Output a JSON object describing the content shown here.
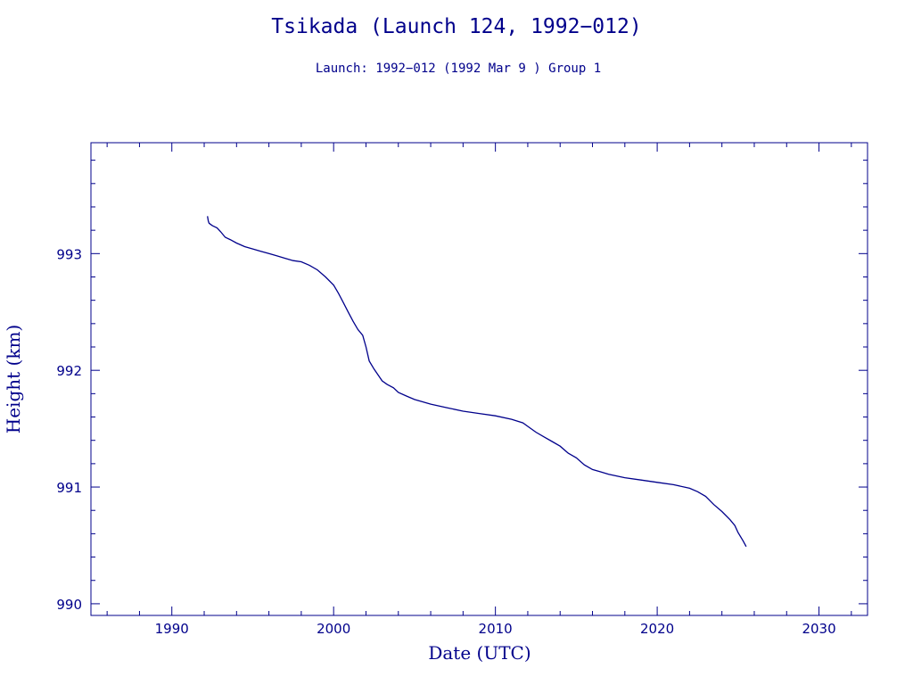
{
  "chart_data": {
    "type": "line",
    "title": "Tsikada (Launch 124, 1992−012)",
    "subtitle": "Launch: 1992−012  (1992 Mar  9 )  Group 1",
    "xlabel": "Date (UTC)",
    "ylabel": "Height (km)",
    "xlim": [
      1985,
      2033
    ],
    "ylim": [
      989.9,
      993.95
    ],
    "x_ticks": [
      1990,
      2000,
      2010,
      2020,
      2030
    ],
    "y_ticks": [
      990,
      991,
      992,
      993
    ],
    "grid": false,
    "line_color": "#00008b",
    "series": [
      {
        "x": [
          1992.2,
          1992.25,
          1992.3,
          1992.5,
          1992.8,
          1993.0,
          1993.3,
          1993.6,
          1994.0,
          1994.5,
          1995.0,
          1995.5,
          1996.0,
          1996.5,
          1997.0,
          1997.5,
          1998.0,
          1998.5,
          1999.0,
          1999.5,
          2000.0,
          2000.3,
          2000.6,
          2000.9,
          2001.2,
          2001.5,
          2001.8,
          2002.0,
          2002.2,
          2002.5,
          2002.8,
          2003.0,
          2003.3,
          2003.7,
          2004.0,
          2004.5,
          2005.0,
          2005.5,
          2006.0,
          2007.0,
          2008.0,
          2009.0,
          2010.0,
          2011.0,
          2011.7,
          2012.0,
          2012.5,
          2013.0,
          2013.5,
          2014.0,
          2014.5,
          2015.0,
          2015.5,
          2016.0,
          2016.5,
          2017.0,
          2018.0,
          2019.0,
          2020.0,
          2021.0,
          2022.0,
          2022.5,
          2023.0,
          2023.5,
          2024.0,
          2024.5,
          2024.8,
          2025.0,
          2025.3,
          2025.5
        ],
        "y": [
          993.32,
          993.28,
          993.26,
          993.24,
          993.22,
          993.19,
          993.14,
          993.12,
          993.09,
          993.06,
          993.04,
          993.02,
          993.0,
          992.98,
          992.96,
          992.94,
          992.93,
          992.9,
          992.86,
          992.8,
          992.73,
          992.66,
          992.58,
          992.5,
          992.42,
          992.35,
          992.3,
          992.2,
          992.08,
          992.01,
          991.95,
          991.91,
          991.88,
          991.85,
          991.81,
          991.78,
          991.75,
          991.73,
          991.71,
          991.68,
          991.65,
          991.63,
          991.61,
          991.58,
          991.55,
          991.52,
          991.47,
          991.43,
          991.39,
          991.35,
          991.29,
          991.25,
          991.19,
          991.15,
          991.13,
          991.11,
          991.08,
          991.06,
          991.04,
          991.02,
          990.99,
          990.96,
          990.92,
          990.85,
          990.79,
          990.72,
          990.67,
          990.61,
          990.54,
          990.49
        ]
      }
    ]
  }
}
